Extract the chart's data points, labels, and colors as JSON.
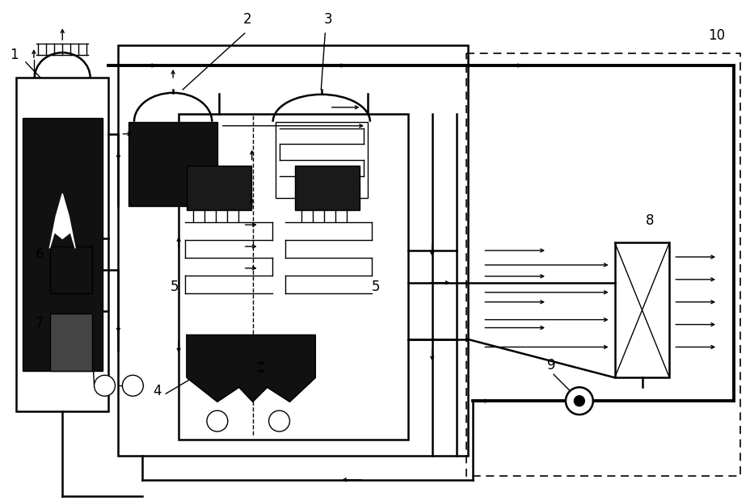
{
  "bg_color": "#ffffff",
  "line_color": "#000000",
  "dark_fill": "#111111",
  "figsize": [
    9.29,
    6.2
  ],
  "dpi": 100
}
